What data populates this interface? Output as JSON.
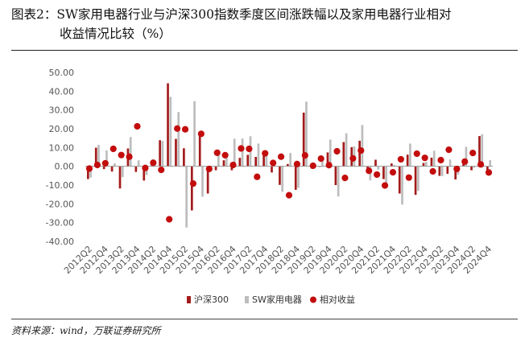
{
  "figure": {
    "title_line1": "图表2：SW家用电器行业与沪深300指数季度区间涨跌幅以及家用电器行业相对",
    "title_line2": "收益情况比较（%）",
    "source": "资料来源：wind，万联证券研究所"
  },
  "colors": {
    "hs300": "#a31b1b",
    "sw": "#bdbdbd",
    "relative": "#c30d0d"
  },
  "chart_data": {
    "type": "bar",
    "categories": [
      "2012Q2",
      "2012Q3",
      "2012Q4",
      "2013Q1",
      "2013Q2",
      "2013Q3",
      "2013Q4",
      "2014Q1",
      "2014Q2",
      "2014Q3",
      "2014Q4",
      "2015Q1",
      "2015Q2",
      "2015Q3",
      "2015Q4",
      "2016Q1",
      "2016Q2",
      "2016Q3",
      "2016Q4",
      "2017Q1",
      "2017Q2",
      "2017Q3",
      "2017Q4",
      "2018Q1",
      "2018Q2",
      "2018Q3",
      "2018Q4",
      "2019Q1",
      "2019Q2",
      "2019Q3",
      "2019Q4",
      "2020Q1",
      "2020Q2",
      "2020Q3",
      "2020Q4",
      "2021Q1",
      "2021Q2",
      "2021Q3",
      "2021Q4",
      "2022Q1",
      "2022Q2",
      "2022Q3",
      "2022Q4",
      "2023Q1",
      "2023Q2",
      "2023Q3",
      "2023Q4",
      "2024Q1",
      "2024Q2",
      "2024Q3",
      "2024Q4"
    ],
    "tick_labels": [
      "2012Q2",
      "2012Q4",
      "2013Q2",
      "2013Q4",
      "2014Q2",
      "2014Q4",
      "2015Q2",
      "2015Q4",
      "2016Q2",
      "2016Q4",
      "2017Q2",
      "2017Q4",
      "2018Q2",
      "2018Q4",
      "2019Q2",
      "2019Q4",
      "2020Q2",
      "2020Q4",
      "2021Q2",
      "2021Q4",
      "2022Q2",
      "2022Q4",
      "2023Q2",
      "2023Q4",
      "2024Q2",
      "2024Q4"
    ],
    "series": [
      {
        "name": "沪深300",
        "kind": "bar",
        "values": [
          -6.8,
          9.9,
          -1.5,
          -2.8,
          -11.8,
          9.5,
          -3.0,
          -7.6,
          0.8,
          13.9,
          44.2,
          14.6,
          9.6,
          -23.5,
          16.1,
          -14.5,
          -2.1,
          3.2,
          -2.1,
          4.5,
          6.1,
          5.0,
          5.9,
          -3.3,
          -9.9,
          1.2,
          -12.5,
          28.6,
          -1.2,
          -0.3,
          7.4,
          -10.0,
          12.9,
          10.2,
          13.6,
          -3.1,
          3.5,
          -6.8,
          1.5,
          -14.5,
          6.2,
          -15.2,
          1.8,
          4.6,
          -5.1,
          -4.0,
          -7.0,
          3.1,
          -2.1,
          16.1,
          -2.6
        ]
      },
      {
        "name": "SW家用电器",
        "kind": "bar",
        "values": [
          -6.0,
          11.4,
          8.5,
          1.6,
          -5.8,
          15.6,
          3.2,
          -4.6,
          2.5,
          13.5,
          37.0,
          28.9,
          -32.6,
          34.7,
          -16.2,
          -1.3,
          8.9,
          4.8,
          14.7,
          14.8,
          16.0,
          12.1,
          8.3,
          0.6,
          -13.6,
          7.1,
          -11.5,
          34.4,
          -0.9,
          3.9,
          14.2,
          -16.1,
          17.6,
          10.6,
          22.0,
          -7.5,
          -1.8,
          -10.0,
          0.7,
          -20.4,
          12.1,
          -13.1,
          2.3,
          8.3,
          -5.2,
          3.6,
          -4.5,
          10.4,
          -0.8,
          17.1,
          3.3
        ]
      },
      {
        "name": "相对收益",
        "kind": "scatter",
        "values": [
          -1.2,
          0.7,
          1.6,
          9.3,
          6.0,
          5.1,
          21.3,
          -0.9,
          1.9,
          -1.9,
          -28.2,
          20.1,
          19.7,
          -9.2,
          17.3,
          -1.4,
          7.2,
          5.9,
          0.7,
          9.5,
          9.3,
          -5.6,
          6.9,
          1.8,
          5.1,
          -15.4,
          1.2,
          5.8,
          0.3,
          4.1,
          0.6,
          8.0,
          -6.2,
          4.2,
          8.4,
          -2.4,
          -4.4,
          -10.2,
          -3.2,
          3.7,
          -6.0,
          6.7,
          4.5,
          -2.7,
          3.3,
          8.8,
          -1.4,
          2.5,
          7.1,
          1.0,
          -3.3
        ]
      }
    ],
    "ylim": [
      -40,
      50
    ],
    "yticks": [
      "50.00",
      "40.00",
      "30.00",
      "20.00",
      "10.00",
      "0.00",
      "-10.00",
      "-20.00",
      "-30.00",
      "-40.00"
    ],
    "grid": false,
    "legend_position": "bottom"
  }
}
